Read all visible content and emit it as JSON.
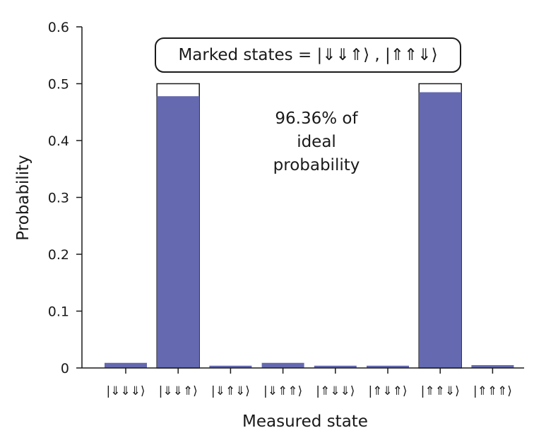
{
  "chart_data": {
    "type": "bar",
    "title": "",
    "xlabel": "Measured state",
    "ylabel": "Probability",
    "ylim": [
      0,
      0.6
    ],
    "yticks": [
      "0",
      "0.1",
      "0.2",
      "0.3",
      "0.4",
      "0.5",
      "0.6"
    ],
    "categories": [
      "|⇓⇓⇓⟩",
      "|⇓⇓⇑⟩",
      "|⇓⇑⇓⟩",
      "|⇓⇑⇑⟩",
      "|⇑⇓⇓⟩",
      "|⇑⇓⇑⟩",
      "|⇑⇑⇓⟩",
      "|⇑⇑⇑⟩"
    ],
    "series": [
      {
        "values": [
          0.009,
          0.478,
          0.004,
          0.009,
          0.004,
          0.004,
          0.485,
          0.005
        ]
      }
    ],
    "ideal": [
      0,
      0.5,
      0,
      0,
      0,
      0,
      0.5,
      0
    ],
    "bar_color": "#6469b0",
    "annotations": {
      "marked_states": "Marked states = |⇓⇓⇑⟩ , |⇑⇑⇓⟩",
      "fidelity_lines": [
        "96.36% of",
        "ideal",
        "probability"
      ]
    },
    "grid": false,
    "legend": "none"
  }
}
